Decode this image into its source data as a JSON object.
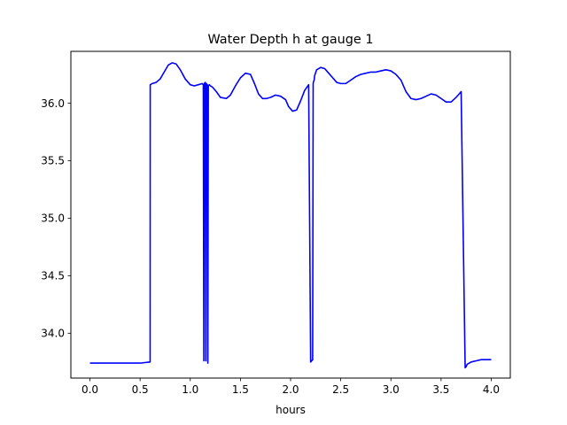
{
  "chart_data": {
    "type": "line",
    "title": "Water Depth h at gauge 1",
    "xlabel": "hours",
    "ylabel": "",
    "xlim": [
      -0.19,
      4.19
    ],
    "ylim": [
      33.61,
      36.45
    ],
    "xticks": [
      {
        "value": 0.0,
        "label": "0.0"
      },
      {
        "value": 0.5,
        "label": "0.5"
      },
      {
        "value": 1.0,
        "label": "1.0"
      },
      {
        "value": 1.5,
        "label": "1.5"
      },
      {
        "value": 2.0,
        "label": "2.0"
      },
      {
        "value": 2.5,
        "label": "2.5"
      },
      {
        "value": 3.0,
        "label": "3.0"
      },
      {
        "value": 3.5,
        "label": "3.5"
      },
      {
        "value": 4.0,
        "label": "4.0"
      }
    ],
    "yticks": [
      {
        "value": 34.0,
        "label": "34.0"
      },
      {
        "value": 34.5,
        "label": "34.5"
      },
      {
        "value": 35.0,
        "label": "35.0"
      },
      {
        "value": 35.5,
        "label": "35.5"
      },
      {
        "value": 36.0,
        "label": "36.0"
      }
    ],
    "grid": false,
    "line_color": "#0000ff",
    "series": [
      {
        "x": [
          0.0,
          0.5,
          0.6,
          0.601,
          0.62,
          0.66,
          0.7,
          0.74,
          0.78,
          0.82,
          0.86,
          0.9,
          0.95,
          1.0,
          1.04,
          1.08,
          1.12,
          1.13,
          1.135,
          1.14,
          1.15,
          1.155,
          1.16,
          1.17,
          1.175,
          1.18,
          1.19,
          1.2,
          1.22,
          1.26,
          1.3,
          1.36,
          1.4,
          1.45,
          1.5,
          1.55,
          1.6,
          1.64,
          1.68,
          1.72,
          1.76,
          1.8,
          1.85,
          1.9,
          1.95,
          1.98,
          2.02,
          2.06,
          2.1,
          2.14,
          2.18,
          2.2,
          2.22,
          2.225,
          2.23,
          2.235,
          2.24,
          2.26,
          2.3,
          2.34,
          2.38,
          2.42,
          2.46,
          2.5,
          2.55,
          2.6,
          2.65,
          2.7,
          2.75,
          2.8,
          2.85,
          2.9,
          2.95,
          3.0,
          3.05,
          3.1,
          3.15,
          3.2,
          3.25,
          3.3,
          3.35,
          3.4,
          3.45,
          3.5,
          3.55,
          3.6,
          3.65,
          3.7,
          3.74,
          3.75,
          3.76,
          3.8,
          3.85,
          3.9,
          3.95,
          4.0
        ],
        "y": [
          33.74,
          33.74,
          33.75,
          36.16,
          36.17,
          36.18,
          36.21,
          36.27,
          36.33,
          36.35,
          36.34,
          36.29,
          36.21,
          36.16,
          36.15,
          36.16,
          36.17,
          36.16,
          33.76,
          36.17,
          36.18,
          33.76,
          36.17,
          36.16,
          33.74,
          36.15,
          36.16,
          36.15,
          36.14,
          36.1,
          36.05,
          36.04,
          36.07,
          36.15,
          36.22,
          36.26,
          36.25,
          36.17,
          36.08,
          36.04,
          36.04,
          36.05,
          36.07,
          36.06,
          36.03,
          35.97,
          35.93,
          35.94,
          36.02,
          36.11,
          36.16,
          33.75,
          33.77,
          36.17,
          36.19,
          36.2,
          36.24,
          36.29,
          36.31,
          36.3,
          36.26,
          36.22,
          36.18,
          36.17,
          36.17,
          36.2,
          36.23,
          36.25,
          36.26,
          36.27,
          36.27,
          36.28,
          36.29,
          36.28,
          36.25,
          36.2,
          36.1,
          36.04,
          36.03,
          36.04,
          36.06,
          36.08,
          36.07,
          36.04,
          36.01,
          36.01,
          36.05,
          36.1,
          33.7,
          33.71,
          33.73,
          33.75,
          33.76,
          33.77,
          33.77,
          33.77
        ]
      }
    ]
  }
}
